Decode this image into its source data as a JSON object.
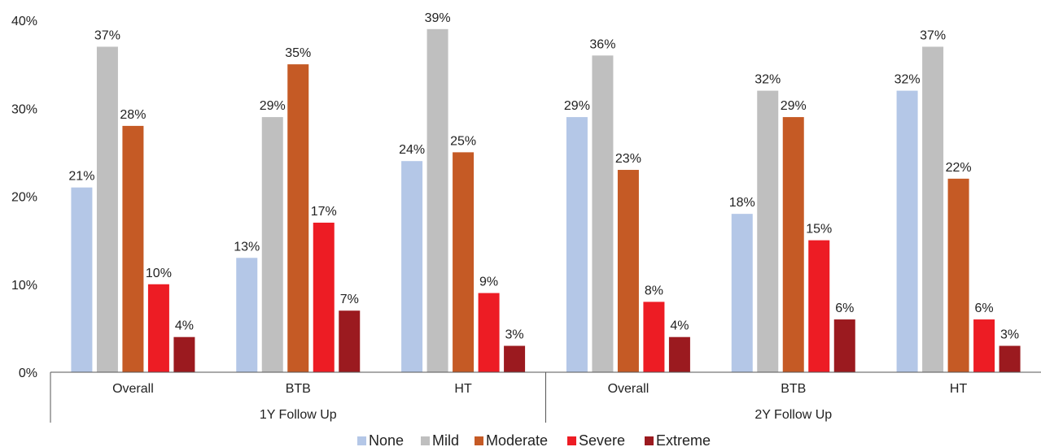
{
  "chart_data": {
    "type": "bar",
    "groups": [
      {
        "label": "1Y Follow Up",
        "categories": [
          "Overall",
          "BTB",
          "HT"
        ]
      },
      {
        "label": "2Y Follow Up",
        "categories": [
          "Overall",
          "BTB",
          "HT"
        ]
      }
    ],
    "categories": [
      "Overall",
      "BTB",
      "HT",
      "Overall",
      "BTB",
      "HT"
    ],
    "series": [
      {
        "name": "None",
        "color": "#b4c7e7",
        "values": [
          21,
          13,
          24,
          29,
          18,
          32
        ],
        "labels": [
          "21%",
          "13%",
          "24%",
          "29%",
          "18%",
          "32%"
        ]
      },
      {
        "name": "Mild",
        "color": "#bfbfbf",
        "values": [
          37,
          29,
          39,
          36,
          32,
          37
        ],
        "labels": [
          "37%",
          "29%",
          "39%",
          "36%",
          "32%",
          "37%"
        ]
      },
      {
        "name": "Moderate",
        "color": "#c55a25",
        "values": [
          28,
          35,
          25,
          23,
          29,
          22
        ],
        "labels": [
          "28%",
          "35%",
          "25%",
          "23%",
          "29%",
          "22%"
        ]
      },
      {
        "name": "Severe",
        "color": "#ed1c24",
        "values": [
          10,
          17,
          9,
          8,
          15,
          6
        ],
        "labels": [
          "10%",
          "17%",
          "9%",
          "8%",
          "15%",
          "6%"
        ]
      },
      {
        "name": "Extreme",
        "color": "#9b1a1f",
        "values": [
          4,
          7,
          3,
          4,
          6,
          3
        ],
        "labels": [
          "4%",
          "7%",
          "3%",
          "4%",
          "6%",
          "3%"
        ]
      }
    ],
    "ylim": [
      0,
      40
    ],
    "yticks": [
      "0%",
      "10%",
      "20%",
      "30%",
      "40%"
    ],
    "grid": false,
    "legend_position": "bottom"
  }
}
